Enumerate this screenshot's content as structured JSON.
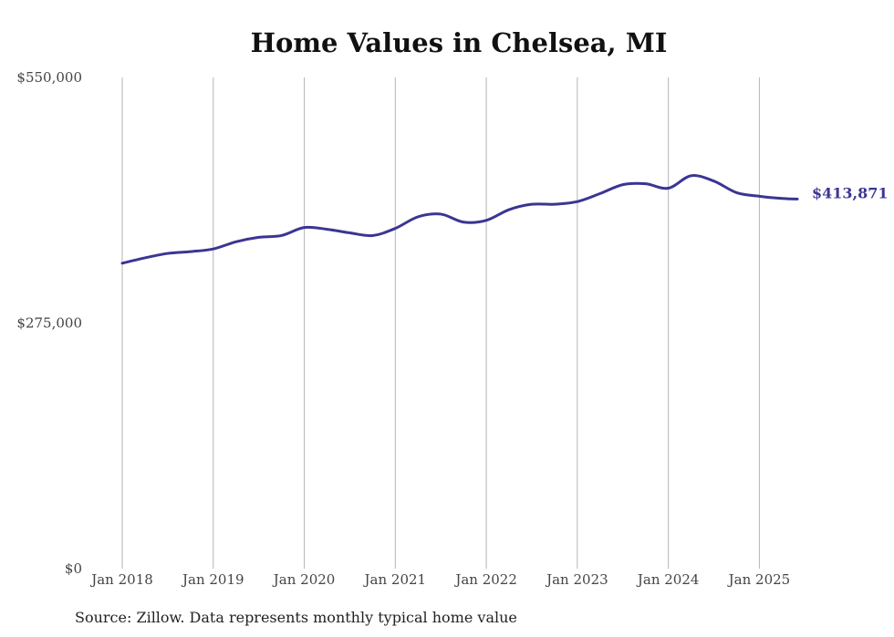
{
  "chart_data": {
    "type": "line",
    "title": "Home Values in Chelsea, MI",
    "xlabel": "",
    "ylabel": "",
    "source": "Source: Zillow. Data represents monthly typical home value",
    "ylim": [
      0,
      550000
    ],
    "yticks": [
      {
        "value": 0,
        "label": "$0"
      },
      {
        "value": 275000,
        "label": "$275,000"
      },
      {
        "value": 550000,
        "label": "$550,000"
      }
    ],
    "xticks": [
      {
        "date": "2018-01",
        "label": "Jan 2018"
      },
      {
        "date": "2019-01",
        "label": "Jan 2019"
      },
      {
        "date": "2020-01",
        "label": "Jan 2020"
      },
      {
        "date": "2021-01",
        "label": "Jan 2021"
      },
      {
        "date": "2022-01",
        "label": "Jan 2022"
      },
      {
        "date": "2023-01",
        "label": "Jan 2023"
      },
      {
        "date": "2024-01",
        "label": "Jan 2024"
      },
      {
        "date": "2025-01",
        "label": "Jan 2025"
      }
    ],
    "grid": {
      "vertical": true,
      "horizontal": false
    },
    "line_color": "#3b3593",
    "series": [
      {
        "end_label": "$413,871",
        "points": [
          {
            "x": "2018-01",
            "y": 342000
          },
          {
            "x": "2018-04",
            "y": 348000
          },
          {
            "x": "2018-07",
            "y": 353000
          },
          {
            "x": "2018-10",
            "y": 355000
          },
          {
            "x": "2019-01",
            "y": 358000
          },
          {
            "x": "2019-04",
            "y": 366000
          },
          {
            "x": "2019-07",
            "y": 371000
          },
          {
            "x": "2019-10",
            "y": 373000
          },
          {
            "x": "2020-01",
            "y": 382000
          },
          {
            "x": "2020-04",
            "y": 380000
          },
          {
            "x": "2020-07",
            "y": 376000
          },
          {
            "x": "2020-10",
            "y": 373000
          },
          {
            "x": "2021-01",
            "y": 381000
          },
          {
            "x": "2021-04",
            "y": 394000
          },
          {
            "x": "2021-07",
            "y": 397000
          },
          {
            "x": "2021-10",
            "y": 388000
          },
          {
            "x": "2022-01",
            "y": 390000
          },
          {
            "x": "2022-04",
            "y": 402000
          },
          {
            "x": "2022-07",
            "y": 408000
          },
          {
            "x": "2022-10",
            "y": 408000
          },
          {
            "x": "2023-01",
            "y": 411000
          },
          {
            "x": "2023-04",
            "y": 420000
          },
          {
            "x": "2023-07",
            "y": 430000
          },
          {
            "x": "2023-10",
            "y": 431000
          },
          {
            "x": "2024-01",
            "y": 426000
          },
          {
            "x": "2024-04",
            "y": 440000
          },
          {
            "x": "2024-07",
            "y": 434000
          },
          {
            "x": "2024-10",
            "y": 421000
          },
          {
            "x": "2025-01",
            "y": 417000
          },
          {
            "x": "2025-04",
            "y": 414500
          },
          {
            "x": "2025-06",
            "y": 413871
          }
        ]
      }
    ]
  }
}
